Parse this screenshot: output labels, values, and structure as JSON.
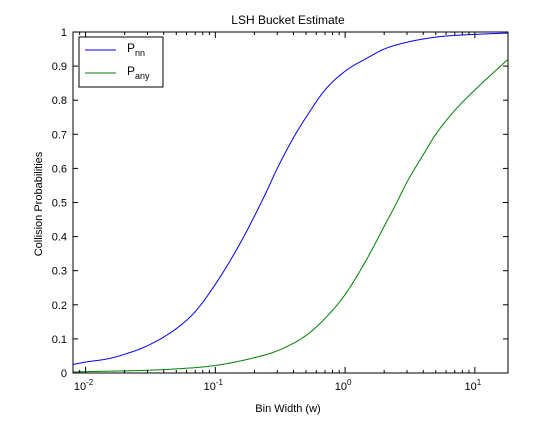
{
  "chart_data": {
    "type": "line",
    "title": "LSH Bucket Estimate",
    "xlabel": "Bin Width (w)",
    "ylabel": "Collision Probabilities",
    "xscale": "log",
    "xlim": [
      0.008,
      18
    ],
    "ylim": [
      0,
      1
    ],
    "xticks": [
      {
        "value": 0.01,
        "base": "10",
        "exp": "-2"
      },
      {
        "value": 0.1,
        "base": "10",
        "exp": "-1"
      },
      {
        "value": 1,
        "base": "10",
        "exp": "0"
      },
      {
        "value": 10,
        "base": "10",
        "exp": "1"
      }
    ],
    "yticks": [
      "0",
      "0.1",
      "0.2",
      "0.3",
      "0.4",
      "0.5",
      "0.6",
      "0.7",
      "0.8",
      "0.9",
      "1"
    ],
    "grid": false,
    "legend_position": "top-left",
    "series": [
      {
        "name_main": "P",
        "name_sub": "nn",
        "color": "#0000ff",
        "x": [
          0.008,
          0.01,
          0.015,
          0.02,
          0.03,
          0.05,
          0.07,
          0.1,
          0.15,
          0.2,
          0.25,
          0.3,
          0.4,
          0.5,
          0.7,
          1,
          1.5,
          2,
          3,
          5,
          7,
          10,
          18
        ],
        "y": [
          0.025,
          0.032,
          0.042,
          0.055,
          0.08,
          0.13,
          0.18,
          0.26,
          0.37,
          0.46,
          0.535,
          0.6,
          0.69,
          0.75,
          0.83,
          0.885,
          0.925,
          0.95,
          0.97,
          0.985,
          0.99,
          0.993,
          0.997
        ]
      },
      {
        "name_main": "P",
        "name_sub": "any",
        "color": "#008000",
        "x": [
          0.008,
          0.01,
          0.03,
          0.05,
          0.1,
          0.2,
          0.3,
          0.5,
          0.7,
          1,
          1.5,
          2,
          2.5,
          3,
          4,
          5,
          7,
          10,
          18
        ],
        "y": [
          0.003,
          0.004,
          0.008,
          0.012,
          0.022,
          0.045,
          0.065,
          0.11,
          0.16,
          0.23,
          0.34,
          0.43,
          0.5,
          0.56,
          0.64,
          0.7,
          0.77,
          0.83,
          0.92
        ]
      }
    ]
  }
}
